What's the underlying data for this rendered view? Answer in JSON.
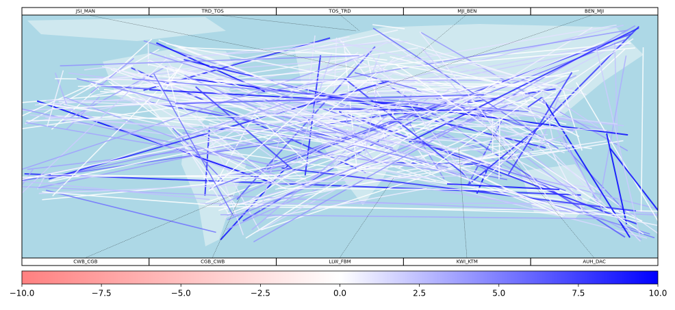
{
  "map": {
    "top_labels": [
      "JSI_MAN",
      "TRD_TOS",
      "TOS_TRD",
      "MJI_BEN",
      "BEN_MJI"
    ],
    "bottom_labels": [
      "CWB_CGB",
      "CGB_CWB",
      "LLW_FBM",
      "KWI_KTM",
      "AUH_DAC"
    ]
  },
  "colorbar": {
    "lim": [
      -10,
      10
    ],
    "ticks": [
      {
        "value": -10,
        "label": "−10.0"
      },
      {
        "value": -7.5,
        "label": "−7.5"
      },
      {
        "value": -5,
        "label": "−5.0"
      },
      {
        "value": -2.5,
        "label": "−2.5"
      },
      {
        "value": 0,
        "label": "0.0"
      },
      {
        "value": 2.5,
        "label": "2.5"
      },
      {
        "value": 5,
        "label": "5.0"
      },
      {
        "value": 7.5,
        "label": "7.5"
      },
      {
        "value": 10,
        "label": "10.0"
      }
    ],
    "colors": [
      "#ff8080",
      "#ffffff",
      "#0000ff"
    ]
  }
}
